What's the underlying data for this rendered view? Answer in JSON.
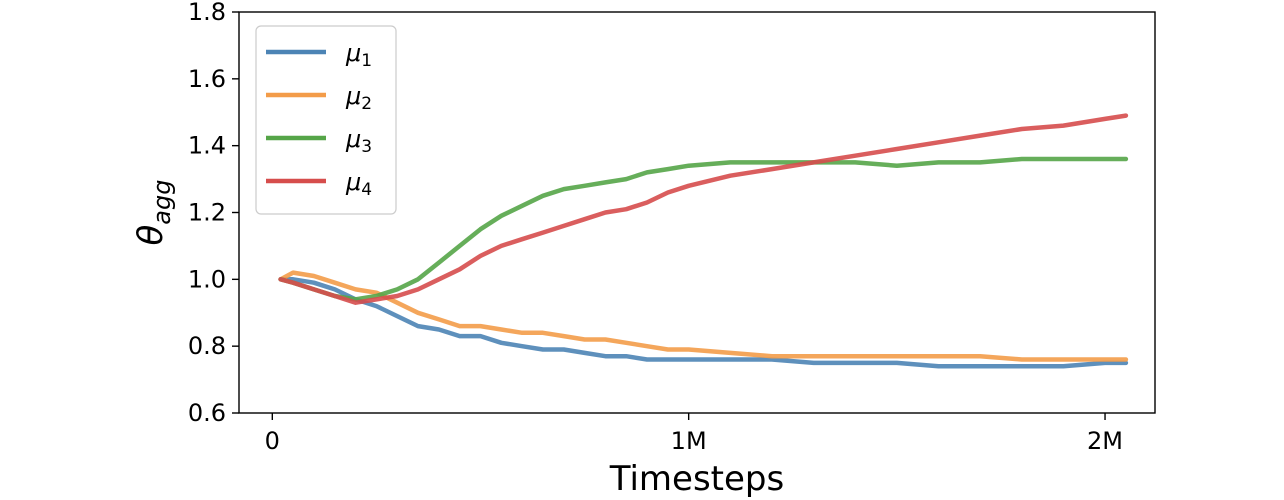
{
  "chart_data": {
    "type": "line",
    "xlabel": "Timesteps",
    "ylabel": "θagg",
    "ylabel_parts": {
      "base": "θ",
      "sub": "agg"
    },
    "xlim": [
      -80000,
      2120000
    ],
    "ylim": [
      0.6,
      1.8
    ],
    "xticks": [
      {
        "value": 0,
        "label": "0"
      },
      {
        "value": 1000000,
        "label": "1M"
      },
      {
        "value": 2000000,
        "label": "2M"
      }
    ],
    "yticks": [
      {
        "value": 0.6,
        "label": "0.6"
      },
      {
        "value": 0.8,
        "label": "0.8"
      },
      {
        "value": 1.0,
        "label": "1.0"
      },
      {
        "value": 1.2,
        "label": "1.2"
      },
      {
        "value": 1.4,
        "label": "1.4"
      },
      {
        "value": 1.6,
        "label": "1.6"
      },
      {
        "value": 1.8,
        "label": "1.8"
      }
    ],
    "grid": false,
    "legend_position": "top-left",
    "series": [
      {
        "name": "μ1",
        "name_base": "μ",
        "name_sub": "1",
        "color": "#4c84b5",
        "x": [
          20000,
          50000,
          100000,
          150000,
          200000,
          250000,
          300000,
          350000,
          400000,
          450000,
          500000,
          550000,
          600000,
          650000,
          700000,
          750000,
          800000,
          850000,
          900000,
          950000,
          1000000,
          1100000,
          1200000,
          1300000,
          1400000,
          1500000,
          1600000,
          1700000,
          1800000,
          1900000,
          2000000,
          2050000
        ],
        "y": [
          1.0,
          1.0,
          0.99,
          0.97,
          0.94,
          0.92,
          0.89,
          0.86,
          0.85,
          0.83,
          0.83,
          0.81,
          0.8,
          0.79,
          0.79,
          0.78,
          0.77,
          0.77,
          0.76,
          0.76,
          0.76,
          0.76,
          0.76,
          0.75,
          0.75,
          0.75,
          0.74,
          0.74,
          0.74,
          0.74,
          0.75,
          0.75
        ]
      },
      {
        "name": "μ2",
        "name_base": "μ",
        "name_sub": "2",
        "color": "#f39c49",
        "x": [
          20000,
          50000,
          100000,
          150000,
          200000,
          250000,
          300000,
          350000,
          400000,
          450000,
          500000,
          550000,
          600000,
          650000,
          700000,
          750000,
          800000,
          850000,
          900000,
          950000,
          1000000,
          1100000,
          1200000,
          1300000,
          1400000,
          1500000,
          1600000,
          1700000,
          1800000,
          1900000,
          2000000,
          2050000
        ],
        "y": [
          1.0,
          1.02,
          1.01,
          0.99,
          0.97,
          0.96,
          0.93,
          0.9,
          0.88,
          0.86,
          0.86,
          0.85,
          0.84,
          0.84,
          0.83,
          0.82,
          0.82,
          0.81,
          0.8,
          0.79,
          0.79,
          0.78,
          0.77,
          0.77,
          0.77,
          0.77,
          0.77,
          0.77,
          0.76,
          0.76,
          0.76,
          0.76
        ]
      },
      {
        "name": "μ3",
        "name_base": "μ",
        "name_sub": "3",
        "color": "#55a548",
        "x": [
          20000,
          50000,
          100000,
          150000,
          200000,
          250000,
          300000,
          350000,
          400000,
          450000,
          500000,
          550000,
          600000,
          650000,
          700000,
          750000,
          800000,
          850000,
          900000,
          950000,
          1000000,
          1100000,
          1200000,
          1300000,
          1400000,
          1500000,
          1600000,
          1700000,
          1800000,
          1900000,
          2000000,
          2050000
        ],
        "y": [
          1.0,
          0.99,
          0.97,
          0.95,
          0.94,
          0.95,
          0.97,
          1.0,
          1.05,
          1.1,
          1.15,
          1.19,
          1.22,
          1.25,
          1.27,
          1.28,
          1.29,
          1.3,
          1.32,
          1.33,
          1.34,
          1.35,
          1.35,
          1.35,
          1.35,
          1.34,
          1.35,
          1.35,
          1.36,
          1.36,
          1.36,
          1.36
        ]
      },
      {
        "name": "μ4",
        "name_base": "μ",
        "name_sub": "4",
        "color": "#d64d4c",
        "x": [
          20000,
          50000,
          100000,
          150000,
          200000,
          250000,
          300000,
          350000,
          400000,
          450000,
          500000,
          550000,
          600000,
          650000,
          700000,
          750000,
          800000,
          850000,
          900000,
          950000,
          1000000,
          1100000,
          1200000,
          1300000,
          1400000,
          1500000,
          1600000,
          1700000,
          1800000,
          1900000,
          2000000,
          2050000
        ],
        "y": [
          1.0,
          0.99,
          0.97,
          0.95,
          0.93,
          0.94,
          0.95,
          0.97,
          1.0,
          1.03,
          1.07,
          1.1,
          1.12,
          1.14,
          1.16,
          1.18,
          1.2,
          1.21,
          1.23,
          1.26,
          1.28,
          1.31,
          1.33,
          1.35,
          1.37,
          1.39,
          1.41,
          1.43,
          1.45,
          1.46,
          1.48,
          1.49
        ]
      }
    ]
  }
}
